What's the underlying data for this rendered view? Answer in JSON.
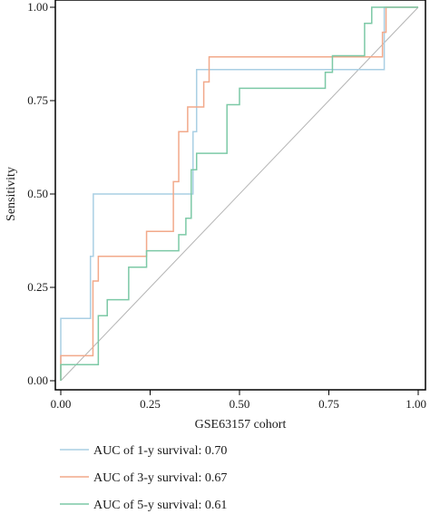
{
  "chart_data": {
    "type": "line",
    "title": "",
    "xlabel": "GSE63157 cohort",
    "ylabel": "Sensitivity",
    "xlim": [
      0,
      1
    ],
    "ylim": [
      0,
      1
    ],
    "x_ticks": [
      "0.00",
      "0.25",
      "0.50",
      "0.75",
      "1.00"
    ],
    "y_ticks": [
      "0.00",
      "0.25",
      "0.50",
      "0.75",
      "1.00"
    ],
    "grid": false,
    "legend_position": "bottom",
    "reference_line": {
      "from": [
        0,
        0
      ],
      "to": [
        1,
        1
      ],
      "color": "#b4b4b4"
    },
    "series": [
      {
        "name": "AUC of 1-y survival: 0.70",
        "color": "#a9cfe4",
        "points": [
          [
            0,
            0
          ],
          [
            0,
            0.167
          ],
          [
            0.083,
            0.167
          ],
          [
            0.083,
            0.333
          ],
          [
            0.091,
            0.333
          ],
          [
            0.091,
            0.5
          ],
          [
            0.37,
            0.5
          ],
          [
            0.37,
            0.667
          ],
          [
            0.38,
            0.667
          ],
          [
            0.38,
            0.833
          ],
          [
            0.905,
            0.833
          ],
          [
            0.905,
            1.0
          ],
          [
            1,
            1
          ]
        ]
      },
      {
        "name": "AUC of 3-y survival: 0.67",
        "color": "#f2a98a",
        "points": [
          [
            0,
            0
          ],
          [
            0,
            0.067
          ],
          [
            0.09,
            0.067
          ],
          [
            0.09,
            0.267
          ],
          [
            0.105,
            0.267
          ],
          [
            0.105,
            0.333
          ],
          [
            0.24,
            0.333
          ],
          [
            0.24,
            0.4
          ],
          [
            0.315,
            0.4
          ],
          [
            0.315,
            0.533
          ],
          [
            0.33,
            0.533
          ],
          [
            0.33,
            0.667
          ],
          [
            0.355,
            0.667
          ],
          [
            0.355,
            0.733
          ],
          [
            0.4,
            0.733
          ],
          [
            0.4,
            0.8
          ],
          [
            0.415,
            0.8
          ],
          [
            0.415,
            0.867
          ],
          [
            0.9,
            0.867
          ],
          [
            0.9,
            0.933
          ],
          [
            0.91,
            0.933
          ],
          [
            0.91,
            1.0
          ],
          [
            1,
            1
          ]
        ]
      },
      {
        "name": "AUC of 5-y survival: 0.61",
        "color": "#7cc9a6",
        "points": [
          [
            0,
            0
          ],
          [
            0,
            0.043
          ],
          [
            0.105,
            0.043
          ],
          [
            0.105,
            0.174
          ],
          [
            0.13,
            0.174
          ],
          [
            0.13,
            0.217
          ],
          [
            0.19,
            0.217
          ],
          [
            0.19,
            0.304
          ],
          [
            0.24,
            0.304
          ],
          [
            0.24,
            0.348
          ],
          [
            0.33,
            0.348
          ],
          [
            0.33,
            0.391
          ],
          [
            0.35,
            0.391
          ],
          [
            0.35,
            0.435
          ],
          [
            0.365,
            0.435
          ],
          [
            0.365,
            0.565
          ],
          [
            0.38,
            0.565
          ],
          [
            0.38,
            0.609
          ],
          [
            0.465,
            0.609
          ],
          [
            0.465,
            0.739
          ],
          [
            0.5,
            0.739
          ],
          [
            0.5,
            0.783
          ],
          [
            0.74,
            0.783
          ],
          [
            0.74,
            0.826
          ],
          [
            0.76,
            0.826
          ],
          [
            0.76,
            0.87
          ],
          [
            0.85,
            0.87
          ],
          [
            0.85,
            0.957
          ],
          [
            0.87,
            0.957
          ],
          [
            0.87,
            1.0
          ],
          [
            1,
            1
          ]
        ]
      }
    ]
  }
}
